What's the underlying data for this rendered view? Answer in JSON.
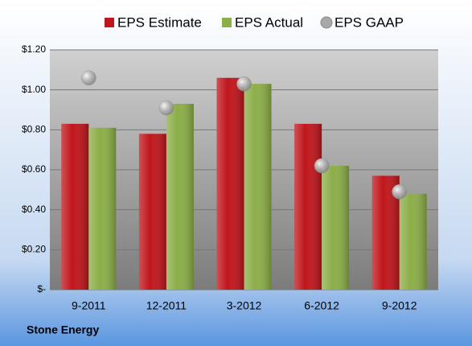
{
  "chart_data": {
    "type": "bar",
    "categories": [
      "9-2011",
      "12-2011",
      "3-2012",
      "6-2012",
      "9-2012"
    ],
    "series": [
      {
        "name": "EPS Estimate",
        "type": "bar",
        "color": "#c0161c",
        "values": [
          0.83,
          0.78,
          1.06,
          0.83,
          0.57
        ]
      },
      {
        "name": "EPS Actual",
        "type": "bar",
        "color": "#8cae48",
        "values": [
          0.81,
          0.93,
          1.03,
          0.62,
          0.48
        ]
      },
      {
        "name": "EPS GAAP",
        "type": "scatter",
        "color": "#a8a8a8",
        "values": [
          1.06,
          0.91,
          1.03,
          0.62,
          0.49
        ]
      }
    ],
    "ylim": [
      0,
      1.2
    ],
    "yticks": [
      {
        "value": 0,
        "label": "$-"
      },
      {
        "value": 0.2,
        "label": "$0.20"
      },
      {
        "value": 0.4,
        "label": "$0.40"
      },
      {
        "value": 0.6,
        "label": "$0.60"
      },
      {
        "value": 0.8,
        "label": "$0.80"
      },
      {
        "value": 1.0,
        "label": "$1.00"
      },
      {
        "value": 1.2,
        "label": "$1.20"
      }
    ],
    "grid": true,
    "source": "Stone Energy"
  }
}
